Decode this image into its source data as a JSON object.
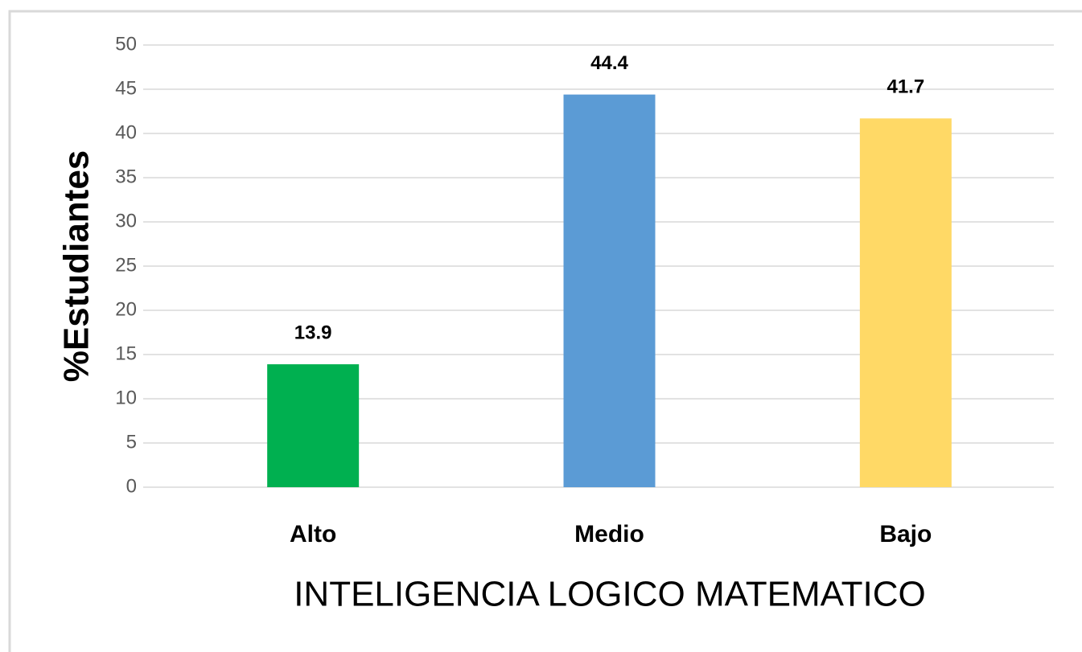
{
  "chart_data": {
    "type": "bar",
    "categories": [
      "Alto",
      "Medio",
      "Bajo"
    ],
    "values": [
      13.9,
      44.4,
      41.7
    ],
    "colors": [
      "#00b050",
      "#5b9bd5",
      "#ffd966"
    ],
    "xlabel": "INTELIGENCIA LOGICO MATEMATICO",
    "ylabel": "%Estudiantes",
    "ylim": [
      0,
      50
    ],
    "yticks": [
      0,
      5,
      10,
      15,
      20,
      25,
      30,
      35,
      40,
      45,
      50
    ],
    "grid": true
  }
}
